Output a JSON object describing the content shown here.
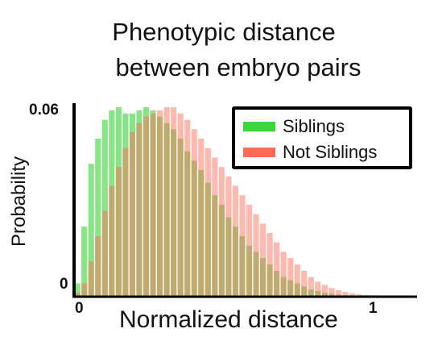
{
  "chart_data": {
    "type": "bar",
    "title": [
      "Phenotypic distance",
      "between embryo pairs"
    ],
    "xlabel": "Normalized distance",
    "ylabel": "Probability",
    "xlim": [
      0,
      1.15
    ],
    "ylim": [
      0,
      0.062
    ],
    "xticks": [
      "0",
      "1"
    ],
    "yticks": [
      "0",
      "0.06"
    ],
    "legend": "top-right",
    "bin_width": 0.023,
    "series": [
      {
        "name": "Siblings",
        "color": "#3ed43e",
        "values": [
          0.004,
          0.022,
          0.042,
          0.05,
          0.056,
          0.059,
          0.06,
          0.058,
          0.058,
          0.059,
          0.06,
          0.059,
          0.057,
          0.055,
          0.053,
          0.05,
          0.046,
          0.043,
          0.04,
          0.036,
          0.032,
          0.029,
          0.025,
          0.022,
          0.019,
          0.016,
          0.014,
          0.012,
          0.01,
          0.008,
          0.006,
          0.005,
          0.004,
          0.003,
          0.002,
          0.0015,
          0.001,
          0.0007,
          0.0004,
          0.0002,
          0.0001,
          0.0001,
          0,
          0,
          0,
          0,
          0,
          0,
          0,
          0
        ]
      },
      {
        "name": "Not Siblings",
        "color": "#ff6b55",
        "values": [
          0.001,
          0.004,
          0.011,
          0.019,
          0.027,
          0.035,
          0.041,
          0.047,
          0.052,
          0.055,
          0.057,
          0.058,
          0.059,
          0.06,
          0.06,
          0.058,
          0.056,
          0.053,
          0.05,
          0.047,
          0.044,
          0.041,
          0.038,
          0.035,
          0.032,
          0.029,
          0.026,
          0.023,
          0.02,
          0.017,
          0.014,
          0.012,
          0.01,
          0.008,
          0.006,
          0.0045,
          0.0035,
          0.0025,
          0.0018,
          0.0012,
          0.0008,
          0.0005,
          0.0003,
          0.0002,
          0.0001,
          0.0001,
          0,
          0,
          0,
          0
        ]
      }
    ]
  }
}
